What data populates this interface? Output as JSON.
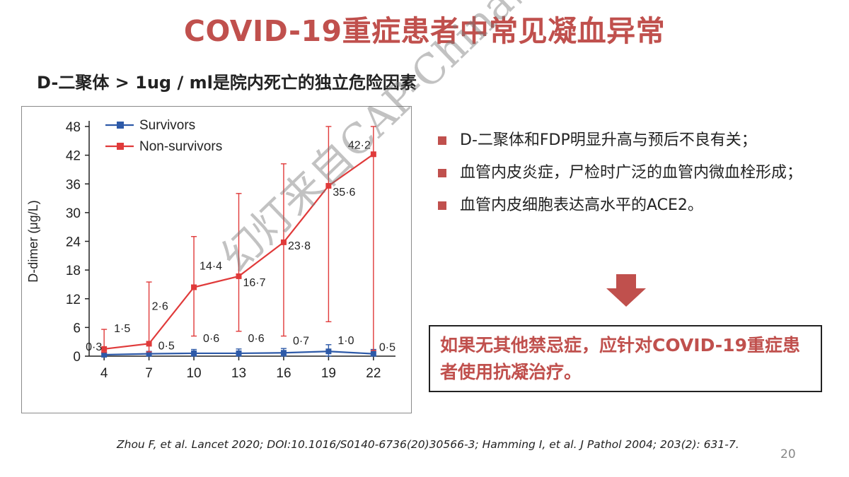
{
  "slide": {
    "title": "COVID-19重症患者中常见凝血异常",
    "subtitle": "D-二聚体 >  1ug / ml是院内死亡的独立危险因素",
    "bullets": [
      "D-二聚体和FDP明显升高与预后不良有关；",
      "血管内皮炎症，尸检时广泛的血管内微血栓形成；",
      "血管内皮细胞表达高水平的ACE2。"
    ],
    "callout": "如果无其他禁忌症，应针对COVID-19重症患者使用抗凝治疗。",
    "reference": "Zhou F, et al. Lancet  2020; DOI:10.1016/S0140-6736(20)30566-3; Hamming I, et al.  J Pathol 2004; 203(2): 631-7.",
    "page_number": "20",
    "watermark": "幻灯来自CAP-China研究平台",
    "accent_color": "#c0504d"
  },
  "chart_data": {
    "type": "line",
    "title": "",
    "xlabel": "",
    "ylabel": "D-dimer (μg/L)",
    "x": [
      4,
      7,
      10,
      13,
      16,
      19,
      22
    ],
    "x_tick_labels": [
      "4",
      "7",
      "10",
      "13",
      "16",
      "19",
      "22"
    ],
    "ylim": [
      0,
      48
    ],
    "y_ticks": [
      0,
      6,
      12,
      18,
      24,
      30,
      36,
      42,
      48
    ],
    "legend_position": "top-left",
    "series": [
      {
        "name": "Survivors",
        "color": "#2e5aa8",
        "values": [
          0.3,
          0.5,
          0.6,
          0.6,
          0.7,
          1.0,
          0.5
        ],
        "error_low": [
          0,
          0,
          0,
          0,
          0,
          0,
          0
        ],
        "error_high": [
          0.6,
          1.0,
          1.4,
          1.5,
          1.6,
          2.4,
          1.4
        ],
        "labels": [
          "0·3",
          "0·5",
          "0·6",
          "0·6",
          "0·7",
          "1·0",
          "0·5"
        ]
      },
      {
        "name": "Non-survivors",
        "color": "#e03a3a",
        "values": [
          1.5,
          2.6,
          14.4,
          16.7,
          23.8,
          35.6,
          42.2
        ],
        "error_low": [
          0.8,
          0.9,
          4.2,
          5.2,
          4.2,
          7.2,
          1.2
        ],
        "error_high": [
          5.6,
          15.5,
          25.0,
          34.0,
          40.2,
          48.0,
          48.0
        ],
        "labels": [
          "1·5",
          "2·6",
          "14·4",
          "16·7",
          "23·8",
          "35·6",
          "42·2"
        ]
      }
    ]
  }
}
